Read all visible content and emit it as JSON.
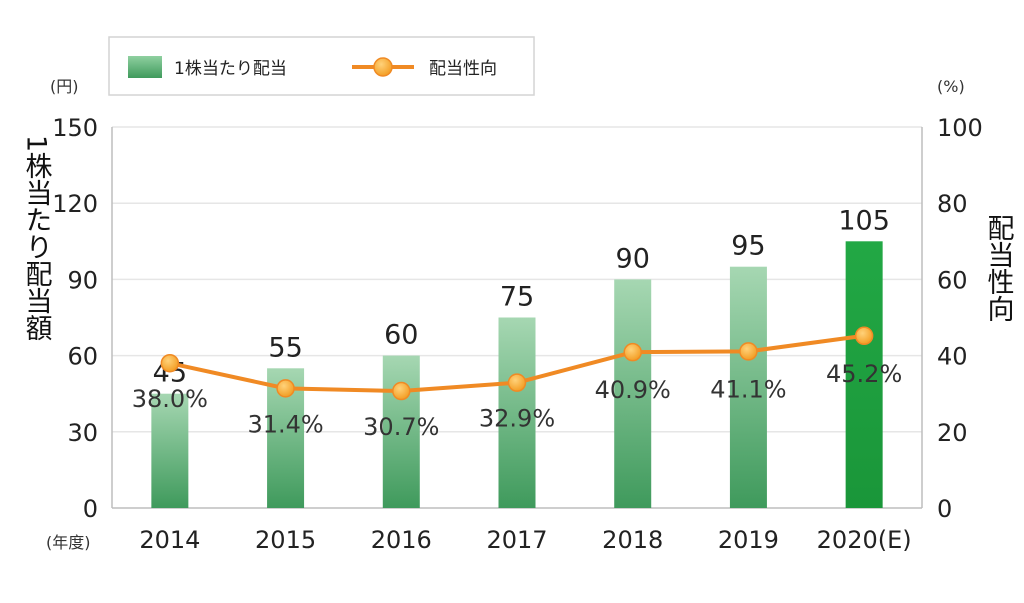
{
  "chart_data": {
    "type": "bar",
    "categories": [
      "2014",
      "2015",
      "2016",
      "2017",
      "2018",
      "2019",
      "2020(E)"
    ],
    "series": [
      {
        "name": "1株当たり配当",
        "type": "bar",
        "axis": "left",
        "values": [
          45,
          55,
          60,
          75,
          90,
          95,
          105
        ],
        "labels": [
          "45",
          "55",
          "60",
          "75",
          "90",
          "95",
          "105"
        ],
        "color": "#4fae6e",
        "highlight_color": "#1f9a3c"
      },
      {
        "name": "配当性向",
        "type": "line",
        "axis": "right",
        "values": [
          38.0,
          31.4,
          30.7,
          32.9,
          40.9,
          41.1,
          45.2
        ],
        "labels": [
          "38.0%",
          "31.4%",
          "30.7%",
          "32.9%",
          "40.9%",
          "41.1%",
          "45.2%"
        ],
        "color": "#f08a24"
      }
    ],
    "y_left": {
      "label": "1株当たり配当額",
      "unit": "(円)",
      "ticks": [
        "0",
        "30",
        "60",
        "90",
        "120",
        "150"
      ],
      "range": [
        0,
        150
      ]
    },
    "y_right": {
      "label": "配当性向",
      "unit": "(%)",
      "ticks": [
        "0",
        "20",
        "40",
        "60",
        "80",
        "100"
      ],
      "range": [
        0,
        100
      ]
    },
    "x_unit": "(年度)",
    "grid": true,
    "legend": "top-left"
  }
}
